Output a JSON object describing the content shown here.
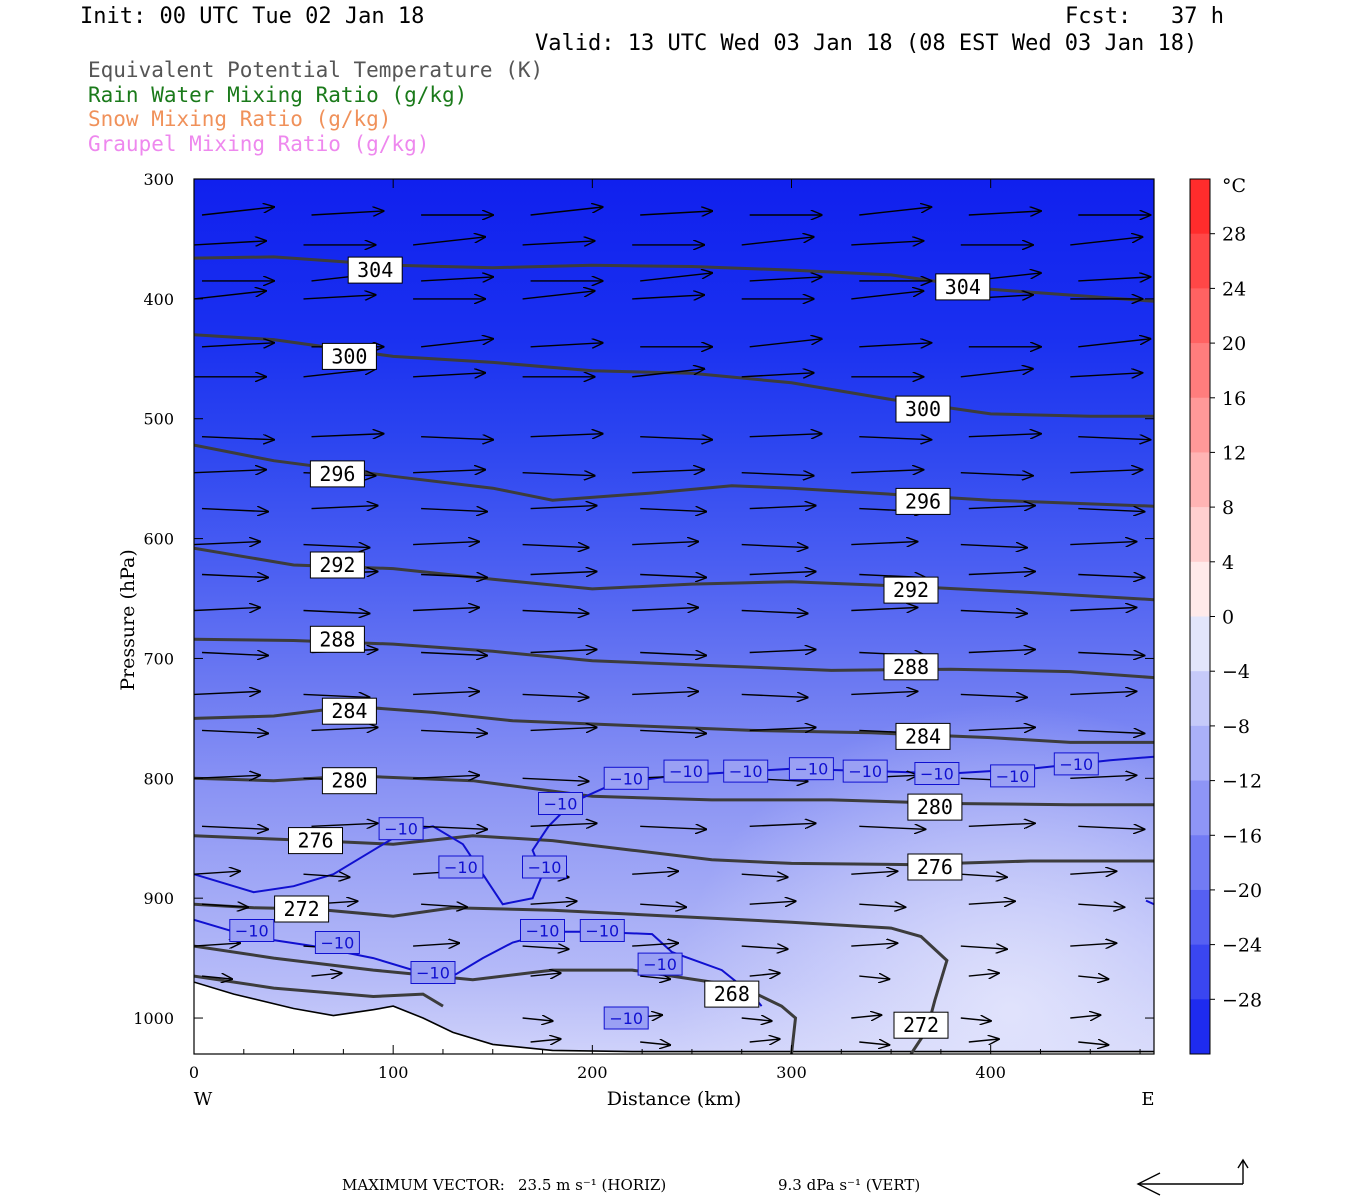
{
  "header": {
    "init": "Init: 00 UTC Tue 02 Jan 18",
    "fcst": "Fcst:   37 h",
    "valid": "Valid: 13 UTC Wed 03 Jan 18 (08 EST Wed 03 Jan 18)"
  },
  "field_titles": [
    {
      "text": "Equivalent Potential Temperature (K)",
      "color": "#555555"
    },
    {
      "text": "Rain Water Mixing Ratio (g/kg)",
      "color": "#1a7a1a"
    },
    {
      "text": "Snow Mixing Ratio (g/kg)",
      "color": "#f0915a"
    },
    {
      "text": "Graupel Mixing Ratio (g/kg)",
      "color": "#ee88ee"
    }
  ],
  "footer": {
    "label": "MAXIMUM VECTOR:",
    "horiz": "23.5 m s⁻¹ (HORIZ)",
    "vert": "9.3 dPa s⁻¹ (VERT)"
  },
  "chart_data": {
    "type": "heatmap",
    "xlabel": "Distance (km)",
    "ylabel": "Pressure (hPa)",
    "xlim": [
      0,
      482
    ],
    "ylim": [
      1030,
      300
    ],
    "x_ticks": [
      0,
      100,
      200,
      300,
      400
    ],
    "y_ticks": [
      300,
      400,
      500,
      600,
      700,
      800,
      900,
      1000
    ],
    "x_end_labels": {
      "left": "W",
      "right": "E"
    },
    "colorbar": {
      "unit": "°C",
      "ticks": [
        28,
        24,
        20,
        16,
        12,
        8,
        4,
        0,
        -4,
        -8,
        -12,
        -16,
        -20,
        -24,
        -28
      ],
      "min": -32,
      "max": 32,
      "step": 4
    },
    "theta_e_contours": [
      {
        "value": 304,
        "points": [
          [
            0,
            366
          ],
          [
            40,
            365
          ],
          [
            100,
            372
          ],
          [
            150,
            374
          ],
          [
            200,
            372
          ],
          [
            250,
            373
          ],
          [
            300,
            376
          ],
          [
            350,
            380
          ],
          [
            400,
            392
          ],
          [
            450,
            398
          ],
          [
            482,
            402
          ]
        ],
        "labels": [
          [
            91,
            376
          ],
          [
            386,
            390
          ]
        ]
      },
      {
        "value": 300,
        "points": [
          [
            0,
            430
          ],
          [
            40,
            434
          ],
          [
            100,
            448
          ],
          [
            150,
            453
          ],
          [
            200,
            460
          ],
          [
            250,
            462
          ],
          [
            300,
            470
          ],
          [
            350,
            484
          ],
          [
            400,
            496
          ],
          [
            450,
            498
          ],
          [
            482,
            498
          ]
        ],
        "labels": [
          [
            78,
            448
          ],
          [
            366,
            492
          ]
        ]
      },
      {
        "value": 296,
        "points": [
          [
            0,
            522
          ],
          [
            40,
            535
          ],
          [
            100,
            548
          ],
          [
            150,
            558
          ],
          [
            180,
            568
          ],
          [
            230,
            562
          ],
          [
            270,
            556
          ],
          [
            300,
            558
          ],
          [
            350,
            563
          ],
          [
            400,
            568
          ],
          [
            482,
            573
          ]
        ],
        "labels": [
          [
            72,
            546
          ],
          [
            366,
            569
          ]
        ]
      },
      {
        "value": 292,
        "points": [
          [
            0,
            608
          ],
          [
            50,
            622
          ],
          [
            100,
            625
          ],
          [
            150,
            634
          ],
          [
            200,
            642
          ],
          [
            250,
            638
          ],
          [
            300,
            636
          ],
          [
            360,
            640
          ],
          [
            420,
            645
          ],
          [
            482,
            651
          ]
        ],
        "labels": [
          [
            72,
            622
          ],
          [
            360,
            643
          ]
        ]
      },
      {
        "value": 288,
        "points": [
          [
            0,
            684
          ],
          [
            50,
            685
          ],
          [
            100,
            688
          ],
          [
            150,
            694
          ],
          [
            200,
            702
          ],
          [
            260,
            706
          ],
          [
            320,
            710
          ],
          [
            380,
            709
          ],
          [
            440,
            711
          ],
          [
            482,
            716
          ]
        ],
        "labels": [
          [
            72,
            684
          ],
          [
            360,
            707
          ]
        ]
      },
      {
        "value": 284,
        "points": [
          [
            0,
            750
          ],
          [
            40,
            748
          ],
          [
            80,
            740
          ],
          [
            120,
            745
          ],
          [
            160,
            752
          ],
          [
            220,
            756
          ],
          [
            280,
            760
          ],
          [
            340,
            762
          ],
          [
            400,
            766
          ],
          [
            440,
            770
          ],
          [
            482,
            770
          ]
        ],
        "labels": [
          [
            78,
            744
          ],
          [
            366,
            765
          ]
        ]
      },
      {
        "value": 280,
        "points": [
          [
            0,
            800
          ],
          [
            40,
            802
          ],
          [
            80,
            798
          ],
          [
            140,
            802
          ],
          [
            200,
            815
          ],
          [
            260,
            818
          ],
          [
            320,
            818
          ],
          [
            380,
            821
          ],
          [
            440,
            822
          ],
          [
            482,
            822
          ]
        ],
        "labels": [
          [
            78,
            802
          ],
          [
            372,
            824
          ]
        ]
      },
      {
        "value": 276,
        "points": [
          [
            0,
            848
          ],
          [
            30,
            850
          ],
          [
            60,
            852
          ],
          [
            100,
            855
          ],
          [
            140,
            848
          ],
          [
            180,
            852
          ],
          [
            220,
            860
          ],
          [
            260,
            868
          ],
          [
            300,
            871
          ],
          [
            360,
            872
          ],
          [
            420,
            869
          ],
          [
            482,
            869
          ]
        ],
        "labels": [
          [
            61,
            852
          ],
          [
            372,
            874
          ]
        ]
      },
      {
        "value": 272,
        "points": [
          [
            0,
            905
          ],
          [
            30,
            908
          ],
          [
            60,
            909
          ],
          [
            100,
            915
          ],
          [
            130,
            908
          ],
          [
            180,
            910
          ],
          [
            240,
            915
          ],
          [
            300,
            920
          ],
          [
            350,
            925
          ],
          [
            365,
            932
          ],
          [
            378,
            952
          ],
          [
            372,
            985
          ],
          [
            368,
            1010
          ],
          [
            360,
            1030
          ]
        ],
        "labels": [
          [
            54,
            909
          ],
          [
            365,
            1006
          ]
        ]
      },
      {
        "value": 268,
        "points": [
          [
            0,
            940
          ],
          [
            40,
            950
          ],
          [
            90,
            960
          ],
          [
            140,
            968
          ],
          [
            180,
            960
          ],
          [
            220,
            960
          ],
          [
            260,
            970
          ],
          [
            280,
            978
          ],
          [
            295,
            990
          ],
          [
            302,
            1000
          ],
          [
            300,
            1030
          ]
        ],
        "labels": [
          [
            270,
            980
          ]
        ]
      },
      {
        "value": 264,
        "points": [
          [
            0,
            965
          ],
          [
            40,
            975
          ],
          [
            90,
            982
          ],
          [
            115,
            980
          ],
          [
            125,
            990
          ]
        ],
        "labels": []
      }
    ],
    "temp_contours": [
      {
        "value": -10,
        "points": [
          [
            0,
            880
          ],
          [
            20,
            890
          ],
          [
            30,
            895
          ],
          [
            50,
            890
          ],
          [
            70,
            880
          ],
          [
            90,
            860
          ],
          [
            105,
            845
          ],
          [
            120,
            840
          ],
          [
            135,
            855
          ],
          [
            145,
            880
          ],
          [
            155,
            905
          ],
          [
            170,
            900
          ],
          [
            175,
            880
          ],
          [
            170,
            860
          ],
          [
            178,
            840
          ],
          [
            190,
            820
          ],
          [
            210,
            805
          ],
          [
            240,
            798
          ],
          [
            270,
            795
          ],
          [
            300,
            792
          ],
          [
            340,
            794
          ],
          [
            380,
            796
          ],
          [
            420,
            792
          ],
          [
            460,
            785
          ],
          [
            482,
            782
          ]
        ],
        "labels": [
          [
            104,
            842
          ],
          [
            134,
            874
          ],
          [
            176,
            874
          ],
          [
            184,
            821
          ],
          [
            217,
            800
          ],
          [
            247,
            794
          ],
          [
            277,
            794
          ],
          [
            310,
            792
          ],
          [
            337,
            794
          ],
          [
            373,
            796
          ],
          [
            411,
            798
          ],
          [
            443,
            788
          ]
        ]
      },
      {
        "value": -10,
        "points": [
          [
            0,
            918
          ],
          [
            20,
            928
          ],
          [
            40,
            935
          ],
          [
            60,
            940
          ],
          [
            90,
            950
          ],
          [
            110,
            960
          ],
          [
            130,
            965
          ],
          [
            145,
            950
          ],
          [
            160,
            937
          ],
          [
            180,
            928
          ],
          [
            200,
            928
          ],
          [
            230,
            930
          ],
          [
            240,
            945
          ],
          [
            265,
            960
          ],
          [
            280,
            980
          ],
          [
            285,
            990
          ]
        ],
        "labels": [
          [
            29,
            927
          ],
          [
            72,
            937
          ],
          [
            120,
            962
          ],
          [
            175,
            927
          ],
          [
            205,
            927
          ],
          [
            234,
            955
          ],
          [
            217,
            1000
          ]
        ]
      },
      {
        "value": -10,
        "points": [
          [
            478,
            902
          ],
          [
            482,
            905
          ]
        ],
        "labels": []
      }
    ],
    "temperature_field_c": {
      "description_levels_hpa": [
        300,
        400,
        500,
        600,
        700,
        800,
        900,
        1000
      ],
      "approx_temperature_c": [
        -36,
        -30,
        -24,
        -20,
        -15,
        -11,
        -7,
        -4
      ]
    },
    "terrain": [
      [
        0,
        970
      ],
      [
        20,
        980
      ],
      [
        50,
        992
      ],
      [
        70,
        998
      ],
      [
        90,
        993
      ],
      [
        100,
        990
      ],
      [
        115,
        1000
      ],
      [
        130,
        1012
      ],
      [
        150,
        1022
      ],
      [
        180,
        1027
      ],
      [
        220,
        1028
      ],
      [
        300,
        1028
      ],
      [
        400,
        1028
      ],
      [
        482,
        1028
      ]
    ]
  }
}
